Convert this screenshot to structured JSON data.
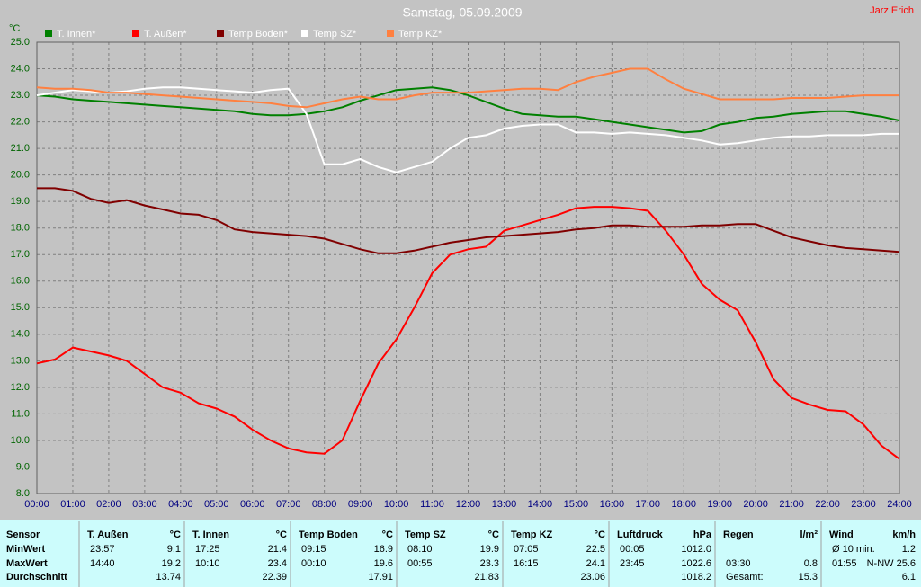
{
  "chart_data": {
    "type": "line",
    "title": "Samstag, 05.09.2009",
    "author": "Jarz Erich",
    "y_label": "°C",
    "xlim": [
      0,
      24
    ],
    "ylim": [
      8,
      25
    ],
    "grid": true,
    "xticks": [
      {
        "value": 0,
        "label": "00:00"
      },
      {
        "value": 1,
        "label": "01:00"
      },
      {
        "value": 2,
        "label": "02:00"
      },
      {
        "value": 3,
        "label": "03:00"
      },
      {
        "value": 4,
        "label": "04:00"
      },
      {
        "value": 5,
        "label": "05:00"
      },
      {
        "value": 6,
        "label": "06:00"
      },
      {
        "value": 7,
        "label": "07:00"
      },
      {
        "value": 8,
        "label": "08:00"
      },
      {
        "value": 9,
        "label": "09:00"
      },
      {
        "value": 10,
        "label": "10:00"
      },
      {
        "value": 11,
        "label": "11:00"
      },
      {
        "value": 12,
        "label": "12:00"
      },
      {
        "value": 13,
        "label": "13:00"
      },
      {
        "value": 14,
        "label": "14:00"
      },
      {
        "value": 15,
        "label": "15:00"
      },
      {
        "value": 16,
        "label": "16:00"
      },
      {
        "value": 17,
        "label": "17:00"
      },
      {
        "value": 18,
        "label": "18:00"
      },
      {
        "value": 19,
        "label": "19:00"
      },
      {
        "value": 20,
        "label": "20:00"
      },
      {
        "value": 21,
        "label": "21:00"
      },
      {
        "value": 22,
        "label": "22:00"
      },
      {
        "value": 23,
        "label": "23:00"
      },
      {
        "value": 24,
        "label": "24:00"
      }
    ],
    "yticks": [
      {
        "value": 8,
        "label": "8.0"
      },
      {
        "value": 9,
        "label": "9.0"
      },
      {
        "value": 10,
        "label": "10.0"
      },
      {
        "value": 11,
        "label": "11.0"
      },
      {
        "value": 12,
        "label": "12.0"
      },
      {
        "value": 13,
        "label": "13.0"
      },
      {
        "value": 14,
        "label": "14.0"
      },
      {
        "value": 15,
        "label": "15.0"
      },
      {
        "value": 16,
        "label": "16.0"
      },
      {
        "value": 17,
        "label": "17.0"
      },
      {
        "value": 18,
        "label": "18.0"
      },
      {
        "value": 19,
        "label": "19.0"
      },
      {
        "value": 20,
        "label": "20.0"
      },
      {
        "value": 21,
        "label": "21.0"
      },
      {
        "value": 22,
        "label": "22.0"
      },
      {
        "value": 23,
        "label": "23.0"
      },
      {
        "value": 24,
        "label": "24.0"
      },
      {
        "value": 25,
        "label": "25.0"
      }
    ],
    "x": [
      0,
      0.5,
      1,
      1.5,
      2,
      2.5,
      3,
      3.5,
      4,
      4.5,
      5,
      5.5,
      6,
      6.5,
      7,
      7.5,
      8,
      8.5,
      9,
      9.5,
      10,
      10.5,
      11,
      11.5,
      12,
      12.5,
      13,
      13.5,
      14,
      14.5,
      15,
      15.5,
      16,
      16.5,
      17,
      17.5,
      18,
      18.5,
      19,
      19.5,
      20,
      20.5,
      21,
      21.5,
      22,
      22.5,
      23,
      23.5,
      24
    ],
    "series": [
      {
        "name": "T. Innen*",
        "color": "#008000",
        "values": [
          23.0,
          22.95,
          22.85,
          22.8,
          22.75,
          22.7,
          22.65,
          22.6,
          22.55,
          22.5,
          22.45,
          22.4,
          22.3,
          22.25,
          22.25,
          22.3,
          22.4,
          22.55,
          22.8,
          23.0,
          23.2,
          23.25,
          23.3,
          23.2,
          23.0,
          22.75,
          22.5,
          22.3,
          22.25,
          22.2,
          22.2,
          22.1,
          22.0,
          21.9,
          21.8,
          21.7,
          21.6,
          21.65,
          21.9,
          22.0,
          22.15,
          22.2,
          22.3,
          22.35,
          22.4,
          22.4,
          22.3,
          22.2,
          22.05
        ]
      },
      {
        "name": "T. Außen*",
        "color": "#ff0000",
        "values": [
          12.9,
          13.05,
          13.5,
          13.35,
          13.2,
          13.0,
          12.5,
          12.0,
          11.8,
          11.4,
          11.2,
          10.9,
          10.4,
          10.0,
          9.7,
          9.55,
          9.5,
          10.0,
          11.5,
          12.9,
          13.8,
          15.0,
          16.3,
          17.0,
          17.2,
          17.3,
          17.9,
          18.1,
          18.3,
          18.5,
          18.75,
          18.8,
          18.8,
          18.75,
          18.65,
          17.9,
          17.0,
          15.9,
          15.3,
          14.9,
          13.7,
          12.3,
          11.6,
          11.35,
          11.15,
          11.1,
          10.6,
          9.8,
          9.3
        ]
      },
      {
        "name": "Temp Boden*",
        "color": "#800000",
        "values": [
          19.5,
          19.5,
          19.4,
          19.1,
          18.95,
          19.05,
          18.85,
          18.7,
          18.55,
          18.5,
          18.3,
          17.95,
          17.85,
          17.8,
          17.75,
          17.7,
          17.6,
          17.4,
          17.2,
          17.05,
          17.05,
          17.15,
          17.3,
          17.45,
          17.55,
          17.65,
          17.7,
          17.75,
          17.8,
          17.85,
          17.95,
          18.0,
          18.1,
          18.1,
          18.05,
          18.05,
          18.05,
          18.1,
          18.1,
          18.15,
          18.15,
          17.9,
          17.65,
          17.5,
          17.35,
          17.25,
          17.2,
          17.15,
          17.1
        ]
      },
      {
        "name": "Temp SZ*",
        "color": "#ffffff",
        "values": [
          23.0,
          23.1,
          23.2,
          23.15,
          23.1,
          23.15,
          23.25,
          23.3,
          23.3,
          23.25,
          23.2,
          23.15,
          23.1,
          23.2,
          23.25,
          22.3,
          20.4,
          20.4,
          20.6,
          20.3,
          20.1,
          20.3,
          20.5,
          21.0,
          21.4,
          21.5,
          21.75,
          21.85,
          21.9,
          21.9,
          21.6,
          21.6,
          21.55,
          21.6,
          21.55,
          21.5,
          21.4,
          21.3,
          21.15,
          21.2,
          21.3,
          21.4,
          21.45,
          21.45,
          21.5,
          21.5,
          21.5,
          21.55,
          21.55
        ]
      },
      {
        "name": "Temp KZ*",
        "color": "#ff8040",
        "values": [
          23.3,
          23.25,
          23.25,
          23.2,
          23.1,
          23.1,
          23.05,
          23.0,
          22.95,
          22.9,
          22.85,
          22.8,
          22.75,
          22.7,
          22.6,
          22.55,
          22.7,
          22.85,
          22.95,
          22.85,
          22.85,
          23.0,
          23.1,
          23.1,
          23.1,
          23.15,
          23.2,
          23.25,
          23.25,
          23.2,
          23.5,
          23.7,
          23.85,
          24.0,
          24.0,
          23.6,
          23.25,
          23.05,
          22.85,
          22.85,
          22.85,
          22.85,
          22.9,
          22.9,
          22.9,
          22.95,
          23.0,
          23.0,
          23.0
        ]
      }
    ]
  },
  "table": {
    "columns": [
      {
        "name": "Sensor"
      },
      {
        "name": "T. Außen",
        "unit": "°C"
      },
      {
        "name": "T. Innen",
        "unit": "°C"
      },
      {
        "name": "Temp Boden",
        "unit": "°C"
      },
      {
        "name": "Temp SZ",
        "unit": "°C"
      },
      {
        "name": "Temp KZ",
        "unit": "°C"
      },
      {
        "name": "Luftdruck",
        "unit": "hPa"
      },
      {
        "name": "Regen",
        "unit": "l/m²"
      },
      {
        "name": "Wind",
        "unit": "km/h"
      }
    ],
    "rows": [
      {
        "label": "MinWert",
        "cells": [
          {
            "time": "23:57",
            "value": "9.1"
          },
          {
            "time": "17:25",
            "value": "21.4"
          },
          {
            "time": "09:15",
            "value": "16.9"
          },
          {
            "time": "08:10",
            "value": "19.9"
          },
          {
            "time": "07:05",
            "value": "22.5"
          },
          {
            "time": "00:05",
            "value": "1012.0"
          },
          {},
          {
            "time": "Ø 10 min.",
            "value": "1.2"
          }
        ]
      },
      {
        "label": "MaxWert",
        "cells": [
          {
            "time": "14:40",
            "value": "19.2"
          },
          {
            "time": "10:10",
            "value": "23.4"
          },
          {
            "time": "00:10",
            "value": "19.6"
          },
          {
            "time": "00:55",
            "value": "23.3"
          },
          {
            "time": "16:15",
            "value": "24.1"
          },
          {
            "time": "23:45",
            "value": "1022.6"
          },
          {
            "time": "03:30",
            "value": "0.8"
          },
          {
            "time": "01:55",
            "value": "N-NW 25.6"
          }
        ]
      },
      {
        "label": "Durchschnitt",
        "cells": [
          {
            "value": "13.74"
          },
          {
            "value": "22.39"
          },
          {
            "value": "17.91"
          },
          {
            "value": "21.83"
          },
          {
            "value": "23.06"
          },
          {
            "value": "1018.2"
          },
          {
            "time": "Gesamt:",
            "value": "15.3"
          },
          {
            "value": "6.1"
          }
        ]
      }
    ]
  }
}
